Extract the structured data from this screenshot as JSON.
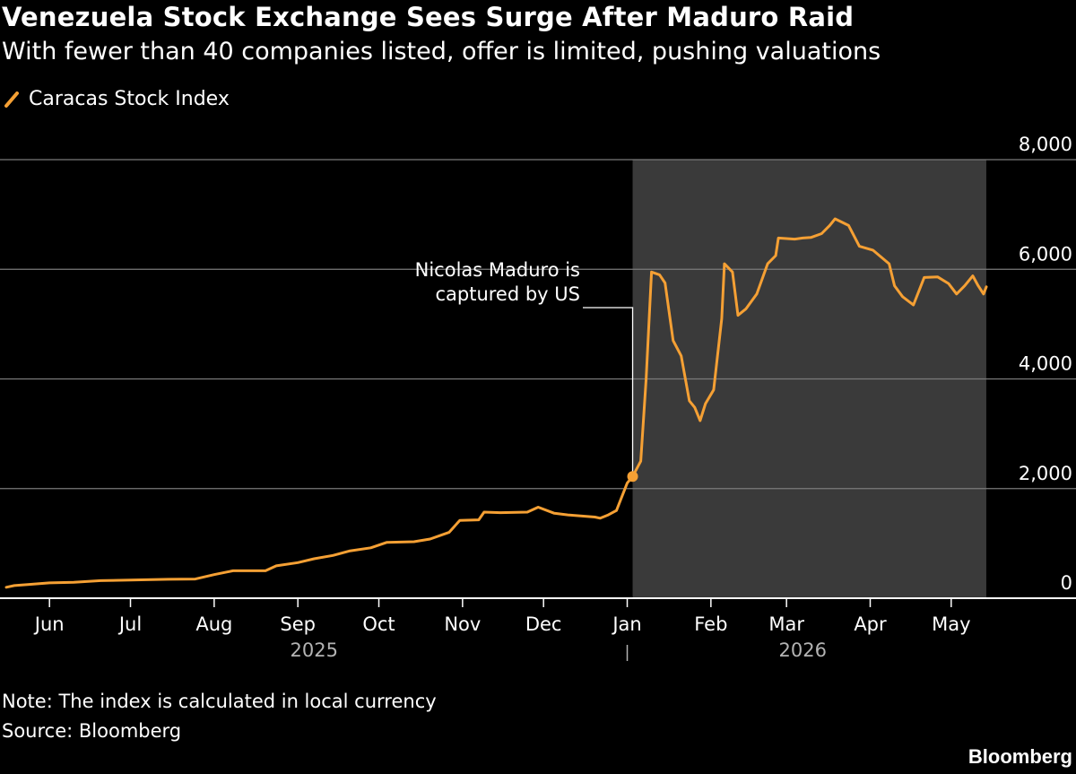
{
  "header": {
    "title": "Venezuela Stock Exchange Sees Surge After Maduro Raid",
    "subtitle": "With fewer than 40 companies listed, offer is limited, pushing valuations"
  },
  "legend": {
    "label": "Caracas Stock Index",
    "color": "#f5a034"
  },
  "footer": {
    "note": "Note: The index is calculated in local currency",
    "source": "Source: Bloomberg",
    "brand": "Bloomberg"
  },
  "colors": {
    "background": "#000000",
    "line": "#f5a034",
    "shade": "#3a3a3a",
    "grid": "#7a7a7a",
    "axis": "#ffffff"
  },
  "chart_data": {
    "type": "line",
    "title": "Venezuela Stock Exchange Sees Surge After Maduro Raid",
    "subtitle": "With fewer than 40 companies listed, offer is limited, pushing valuations",
    "xlabel": "",
    "ylabel": "",
    "x_range": [
      "2025-05-15",
      "2026-05-18"
    ],
    "ylim": [
      0,
      8000
    ],
    "yticks": [
      0,
      2000,
      4000,
      6000,
      8000
    ],
    "ytick_labels": [
      "0",
      "2,000",
      "4,000",
      "6,000",
      "8,000"
    ],
    "grid": true,
    "legend_position": "top-left",
    "month_ticks": [
      {
        "date": "2025-06-01",
        "label": "Jun"
      },
      {
        "date": "2025-07-01",
        "label": "Jul"
      },
      {
        "date": "2025-08-01",
        "label": "Aug"
      },
      {
        "date": "2025-09-01",
        "label": "Sep"
      },
      {
        "date": "2025-10-01",
        "label": "Oct"
      },
      {
        "date": "2025-11-01",
        "label": "Nov"
      },
      {
        "date": "2025-12-01",
        "label": "Dec"
      },
      {
        "date": "2026-01-01",
        "label": "Jan"
      },
      {
        "date": "2026-02-01",
        "label": "Feb"
      },
      {
        "date": "2026-03-01",
        "label": "Mar"
      },
      {
        "date": "2026-04-01",
        "label": "Apr"
      },
      {
        "date": "2026-05-01",
        "label": "May"
      }
    ],
    "year_labels": [
      {
        "date": "2025-09-07",
        "label": "2025"
      },
      {
        "date": "2026-03-07",
        "label": "2026"
      }
    ],
    "year_divider": "2026-01-01",
    "shaded_region": {
      "start": "2026-01-03",
      "end": "2026-05-14"
    },
    "annotation": {
      "text_lines": [
        "Nicolas Maduro is",
        "captured by US"
      ],
      "date": "2026-01-03",
      "value": 2220
    },
    "series": [
      {
        "name": "Caracas Stock Index",
        "color": "#f5a034",
        "points": [
          [
            "2025-05-16",
            200
          ],
          [
            "2025-05-19",
            230
          ],
          [
            "2025-05-24",
            250
          ],
          [
            "2025-06-01",
            280
          ],
          [
            "2025-06-10",
            290
          ],
          [
            "2025-06-20",
            320
          ],
          [
            "2025-07-01",
            330
          ],
          [
            "2025-07-15",
            345
          ],
          [
            "2025-07-25",
            350
          ],
          [
            "2025-08-01",
            430
          ],
          [
            "2025-08-08",
            500
          ],
          [
            "2025-08-20",
            500
          ],
          [
            "2025-08-24",
            590
          ],
          [
            "2025-09-01",
            650
          ],
          [
            "2025-09-07",
            720
          ],
          [
            "2025-09-14",
            780
          ],
          [
            "2025-09-20",
            860
          ],
          [
            "2025-09-28",
            920
          ],
          [
            "2025-10-04",
            1020
          ],
          [
            "2025-10-14",
            1030
          ],
          [
            "2025-10-20",
            1080
          ],
          [
            "2025-10-27",
            1200
          ],
          [
            "2025-10-31",
            1420
          ],
          [
            "2025-11-07",
            1430
          ],
          [
            "2025-11-09",
            1570
          ],
          [
            "2025-11-15",
            1560
          ],
          [
            "2025-11-25",
            1570
          ],
          [
            "2025-11-29",
            1660
          ],
          [
            "2025-12-05",
            1550
          ],
          [
            "2025-12-10",
            1520
          ],
          [
            "2025-12-20",
            1480
          ],
          [
            "2025-12-22",
            1460
          ],
          [
            "2025-12-25",
            1520
          ],
          [
            "2025-12-28",
            1600
          ],
          [
            "2026-01-01",
            2100
          ],
          [
            "2026-01-03",
            2220
          ],
          [
            "2026-01-06",
            2500
          ],
          [
            "2026-01-08",
            4000
          ],
          [
            "2026-01-10",
            5950
          ],
          [
            "2026-01-13",
            5900
          ],
          [
            "2026-01-15",
            5750
          ],
          [
            "2026-01-18",
            4700
          ],
          [
            "2026-01-21",
            4420
          ],
          [
            "2026-01-24",
            3600
          ],
          [
            "2026-01-26",
            3480
          ],
          [
            "2026-01-28",
            3240
          ],
          [
            "2026-01-30",
            3550
          ],
          [
            "2026-02-02",
            3800
          ],
          [
            "2026-02-05",
            5100
          ],
          [
            "2026-02-06",
            6100
          ],
          [
            "2026-02-09",
            5950
          ],
          [
            "2026-02-11",
            5160
          ],
          [
            "2026-02-14",
            5280
          ],
          [
            "2026-02-18",
            5550
          ],
          [
            "2026-02-22",
            6100
          ],
          [
            "2026-02-25",
            6250
          ],
          [
            "2026-02-26",
            6570
          ],
          [
            "2026-03-04",
            6550
          ],
          [
            "2026-03-07",
            6570
          ],
          [
            "2026-03-10",
            6580
          ],
          [
            "2026-03-14",
            6650
          ],
          [
            "2026-03-17",
            6800
          ],
          [
            "2026-03-19",
            6920
          ],
          [
            "2026-03-24",
            6800
          ],
          [
            "2026-03-28",
            6420
          ],
          [
            "2026-04-02",
            6350
          ],
          [
            "2026-04-08",
            6100
          ],
          [
            "2026-04-10",
            5700
          ],
          [
            "2026-04-13",
            5500
          ],
          [
            "2026-04-17",
            5350
          ],
          [
            "2026-04-21",
            5850
          ],
          [
            "2026-04-26",
            5860
          ],
          [
            "2026-04-30",
            5740
          ],
          [
            "2026-05-03",
            5550
          ],
          [
            "2026-05-06",
            5700
          ],
          [
            "2026-05-09",
            5880
          ],
          [
            "2026-05-11",
            5700
          ],
          [
            "2026-05-13",
            5550
          ],
          [
            "2026-05-14",
            5680
          ]
        ]
      }
    ]
  }
}
